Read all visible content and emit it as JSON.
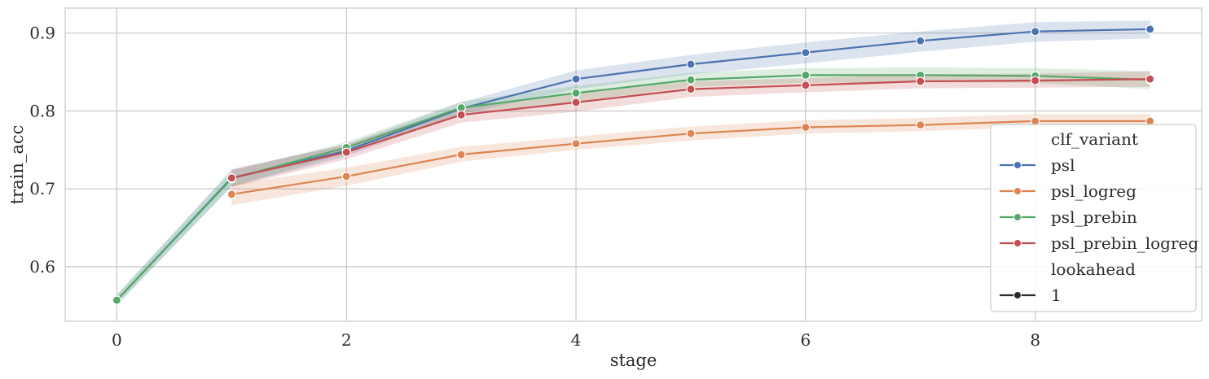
{
  "chart_data": {
    "type": "line",
    "xlabel": "stage",
    "ylabel": "train_acc",
    "xlim": [
      -0.45,
      9.45
    ],
    "ylim": [
      0.53,
      0.932
    ],
    "x_ticks": [
      0,
      2,
      4,
      6,
      8
    ],
    "y_ticks": [
      0.6,
      0.7,
      0.8,
      0.9
    ],
    "x_tick_labels": [
      "0",
      "2",
      "4",
      "6",
      "8"
    ],
    "y_tick_labels": [
      "0.6",
      "0.7",
      "0.8",
      "0.9"
    ],
    "grid": true,
    "legend_position": "right",
    "series": [
      {
        "name": "psl",
        "color": "#4c72b0",
        "x": [
          0,
          1,
          2,
          3,
          4,
          5,
          6,
          7,
          8,
          9
        ],
        "values": [
          0.557,
          0.714,
          0.749,
          0.803,
          0.841,
          0.86,
          0.875,
          0.89,
          0.902,
          0.905
        ],
        "lower": [
          0.551,
          0.703,
          0.742,
          0.796,
          0.828,
          0.847,
          0.861,
          0.876,
          0.889,
          0.893
        ],
        "upper": [
          0.564,
          0.725,
          0.757,
          0.811,
          0.852,
          0.872,
          0.888,
          0.902,
          0.914,
          0.916
        ]
      },
      {
        "name": "psl_logreg",
        "color": "#dd8452",
        "x": [
          1,
          2,
          3,
          4,
          5,
          6,
          7,
          8,
          9
        ],
        "values": [
          0.693,
          0.716,
          0.744,
          0.758,
          0.771,
          0.779,
          0.782,
          0.787,
          0.787
        ],
        "lower": [
          0.679,
          0.704,
          0.735,
          0.75,
          0.762,
          0.771,
          0.774,
          0.779,
          0.779
        ],
        "upper": [
          0.706,
          0.727,
          0.754,
          0.767,
          0.78,
          0.788,
          0.791,
          0.796,
          0.796
        ]
      },
      {
        "name": "psl_prebin",
        "color": "#55a868",
        "x": [
          0,
          1,
          2,
          3,
          4,
          5,
          6,
          7,
          8,
          9
        ],
        "values": [
          0.557,
          0.713,
          0.753,
          0.804,
          0.823,
          0.84,
          0.846,
          0.846,
          0.845,
          0.84
        ],
        "lower": [
          0.551,
          0.703,
          0.746,
          0.797,
          0.812,
          0.831,
          0.836,
          0.837,
          0.836,
          0.828
        ],
        "upper": [
          0.564,
          0.723,
          0.76,
          0.812,
          0.832,
          0.849,
          0.855,
          0.856,
          0.855,
          0.851
        ]
      },
      {
        "name": "psl_prebin_logreg",
        "color": "#c44e52",
        "x": [
          1,
          2,
          3,
          4,
          5,
          6,
          7,
          8,
          9
        ],
        "values": [
          0.714,
          0.747,
          0.795,
          0.811,
          0.828,
          0.833,
          0.838,
          0.839,
          0.841
        ],
        "lower": [
          0.702,
          0.738,
          0.785,
          0.799,
          0.818,
          0.824,
          0.829,
          0.83,
          0.831
        ],
        "upper": [
          0.725,
          0.757,
          0.805,
          0.822,
          0.838,
          0.842,
          0.847,
          0.848,
          0.851
        ]
      }
    ],
    "legend": {
      "title": "clf_variant",
      "entries": [
        "psl",
        "psl_logreg",
        "psl_prebin",
        "psl_prebin_logreg"
      ],
      "style_title": "lookahead",
      "style_entries": [
        "1"
      ],
      "style_color": "#2b2b2b"
    }
  }
}
